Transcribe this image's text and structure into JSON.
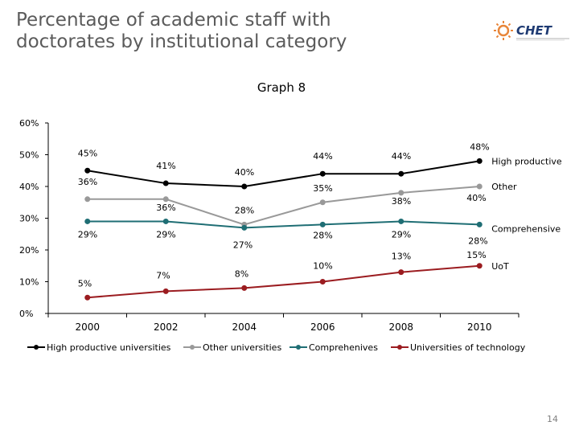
{
  "slide": {
    "title_line1": "Percentage of academic staff with",
    "title_line2": "doctorates by institutional category",
    "graph_label": "Graph 8",
    "page_number": "14",
    "logo_text": "CHET"
  },
  "colors": {
    "high": "#000000",
    "other": "#999999",
    "comp": "#1f6e74",
    "uot": "#9b1c20",
    "logo_orange": "#e8863a",
    "logo_blue": "#1f3b73"
  },
  "chart_data": {
    "type": "line",
    "title": "Graph 8",
    "x": [
      "2000",
      "2002",
      "2004",
      "2006",
      "2008",
      "2010"
    ],
    "ylim": [
      0,
      60
    ],
    "yticks": [
      "0%",
      "10%",
      "20%",
      "30%",
      "40%",
      "50%",
      "60%"
    ],
    "series": [
      {
        "key": "high",
        "name": "High productive universities",
        "end_label": "High productive",
        "values": [
          45,
          41,
          40,
          44,
          44,
          48
        ],
        "labels": [
          "45%",
          "41%",
          "40%",
          "44%",
          "44%",
          "48%"
        ]
      },
      {
        "key": "other",
        "name": "Other universities",
        "end_label": "Other",
        "values": [
          36,
          36,
          28,
          35,
          38,
          40
        ],
        "labels": [
          "36%",
          "36%",
          "28%",
          "35%",
          "38%",
          "40%"
        ]
      },
      {
        "key": "comp",
        "name": "Comprehenives",
        "end_label": "Comprehensive",
        "values": [
          29,
          29,
          27,
          28,
          29,
          28
        ],
        "labels": [
          "29%",
          "29%",
          "27%",
          "28%",
          "29%",
          "28%"
        ]
      },
      {
        "key": "uot",
        "name": "Universities of technology",
        "end_label": "UoT",
        "values": [
          5,
          7,
          8,
          10,
          13,
          15
        ],
        "labels": [
          "5%",
          "7%",
          "8%",
          "10%",
          "13%",
          "15%"
        ]
      }
    ]
  }
}
